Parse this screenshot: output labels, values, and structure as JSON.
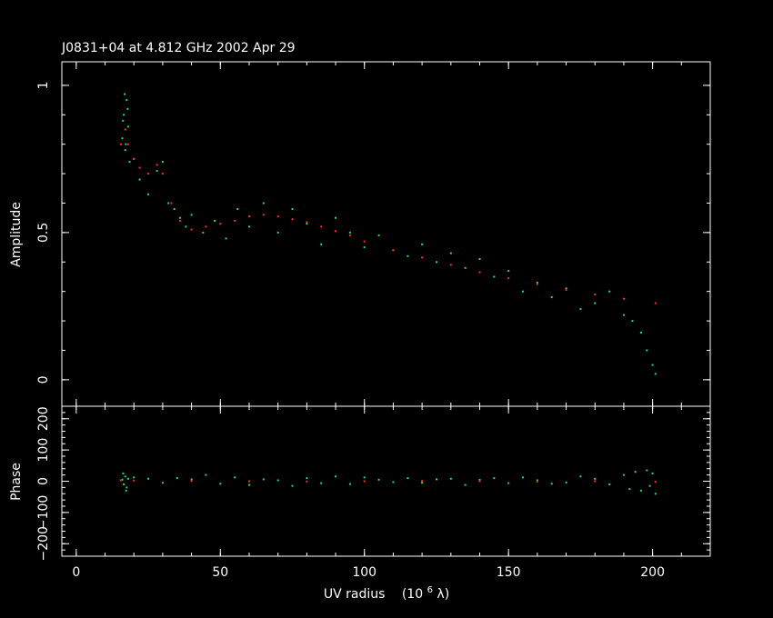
{
  "chart_data": {
    "type": "scatter",
    "title": "J0831+04 at 4.812 GHz 2002 Apr 29",
    "xlabel": "UV radius",
    "xlabel_units": "(10",
    "xlabel_units_exponent": "6",
    "xlabel_units_tail": " λ)",
    "xlim": [
      -5,
      220
    ],
    "x_ticks": [
      "0",
      "50",
      "100",
      "150",
      "200"
    ],
    "x_tick_values": [
      0,
      50,
      100,
      150,
      200
    ],
    "colors": {
      "background": "#000000",
      "axes": "#ffffff",
      "data": "#22dd66",
      "model": "#ff2a2a"
    },
    "panels": [
      {
        "ylabel": "Amplitude",
        "ylim": [
          -0.09,
          1.08
        ],
        "y_ticks": [
          "0",
          "0.5",
          "1"
        ],
        "y_tick_values": [
          0,
          0.5,
          1
        ],
        "series": [
          {
            "role": "data",
            "x": [
              16,
              16.5,
              17,
              17.5,
              18,
              18.5,
              16.8,
              17.2,
              16.2,
              17.8,
              20,
              22,
              25,
              28,
              30,
              32,
              34,
              36,
              38,
              40,
              44,
              48,
              52,
              56,
              60,
              65,
              70,
              75,
              80,
              85,
              90,
              95,
              100,
              105,
              110,
              115,
              120,
              125,
              130,
              135,
              140,
              145,
              150,
              155,
              160,
              165,
              170,
              175,
              180,
              185,
              190,
              193,
              196,
              198,
              200,
              201
            ],
            "y": [
              0.82,
              0.9,
              0.78,
              0.95,
              0.86,
              0.74,
              0.97,
              0.8,
              0.88,
              0.92,
              0.75,
              0.68,
              0.63,
              0.71,
              0.74,
              0.6,
              0.58,
              0.55,
              0.52,
              0.56,
              0.5,
              0.54,
              0.48,
              0.58,
              0.52,
              0.6,
              0.5,
              0.58,
              0.53,
              0.46,
              0.55,
              0.5,
              0.45,
              0.49,
              0.44,
              0.42,
              0.46,
              0.4,
              0.43,
              0.38,
              0.41,
              0.35,
              0.37,
              0.3,
              0.33,
              0.28,
              0.31,
              0.24,
              0.26,
              0.3,
              0.22,
              0.2,
              0.16,
              0.1,
              0.05,
              0.02
            ]
          },
          {
            "role": "model",
            "x": [
              15.5,
              17,
              18,
              20,
              22,
              25,
              28,
              30,
              33,
              36,
              40,
              45,
              50,
              55,
              60,
              65,
              70,
              75,
              80,
              85,
              90,
              95,
              100,
              110,
              120,
              130,
              140,
              150,
              160,
              170,
              180,
              190,
              201
            ],
            "y": [
              0.8,
              0.85,
              0.8,
              0.75,
              0.72,
              0.7,
              0.73,
              0.7,
              0.6,
              0.54,
              0.51,
              0.52,
              0.53,
              0.54,
              0.555,
              0.56,
              0.555,
              0.545,
              0.535,
              0.52,
              0.505,
              0.49,
              0.47,
              0.44,
              0.415,
              0.39,
              0.365,
              0.345,
              0.325,
              0.305,
              0.29,
              0.275,
              0.26
            ]
          }
        ]
      },
      {
        "ylabel": "Phase",
        "ylim": [
          -240,
          240
        ],
        "y_ticks": [
          "−200",
          "−100",
          "0",
          "100",
          "200"
        ],
        "y_tick_values": [
          -200,
          -100,
          0,
          100,
          200
        ],
        "series": [
          {
            "role": "data",
            "x": [
              16,
              16.5,
              17,
              17.5,
              18,
              16.3,
              17.3,
              20,
              25,
              30,
              35,
              40,
              45,
              50,
              55,
              60,
              65,
              70,
              75,
              80,
              85,
              90,
              95,
              100,
              105,
              110,
              115,
              120,
              125,
              130,
              135,
              140,
              145,
              150,
              155,
              160,
              165,
              170,
              175,
              180,
              185,
              190,
              192,
              194,
              196,
              198,
              199,
              200,
              201
            ],
            "y": [
              5,
              -10,
              15,
              -20,
              8,
              25,
              -30,
              12,
              8,
              -5,
              10,
              6,
              20,
              -8,
              12,
              -12,
              6,
              3,
              -15,
              10,
              -6,
              15,
              -9,
              12,
              5,
              -3,
              10,
              -5,
              6,
              8,
              -12,
              5,
              10,
              -6,
              12,
              3,
              -8,
              -4,
              15,
              8,
              -10,
              20,
              -25,
              30,
              -30,
              35,
              -15,
              25,
              -40
            ]
          },
          {
            "role": "model",
            "x": [
              15.5,
              20,
              40,
              60,
              80,
              100,
              120,
              140,
              160,
              180,
              201
            ],
            "y": [
              3,
              2,
              1,
              0,
              -1,
              0,
              1,
              0,
              -1,
              0,
              -2
            ]
          }
        ]
      }
    ]
  }
}
